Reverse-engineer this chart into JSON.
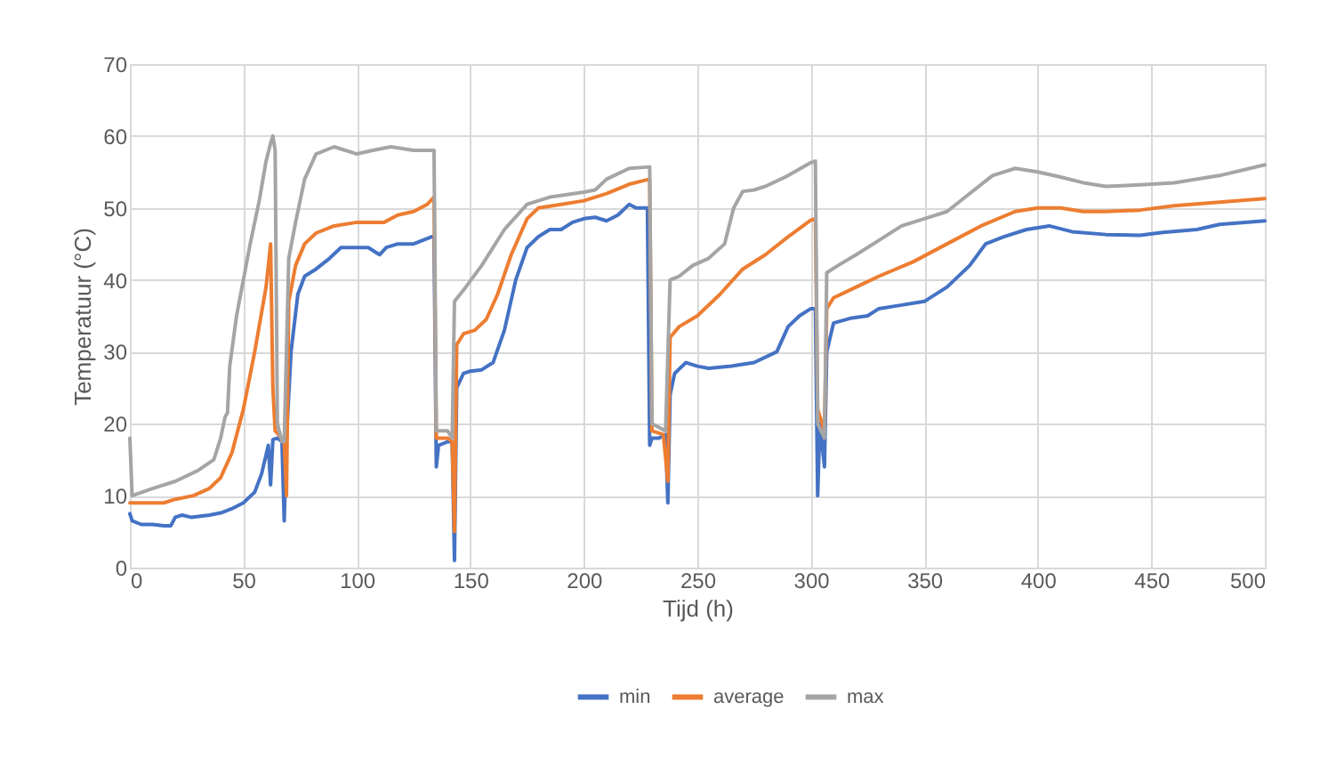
{
  "chart_data": {
    "type": "line",
    "xlabel": "Tijd (h)",
    "ylabel": "Temperatuur (°C)",
    "xlim": [
      0,
      500
    ],
    "xticks": [
      0,
      50,
      100,
      150,
      200,
      250,
      300,
      350,
      400,
      450,
      500
    ],
    "ylim": [
      0,
      70
    ],
    "yticks": [
      0,
      10,
      20,
      30,
      40,
      50,
      60,
      70
    ],
    "grid": true,
    "legend": "bottom",
    "line_style": "solid",
    "marker": "none",
    "series": [
      {
        "name": "min",
        "color": "#4472c4",
        "x": [
          0,
          1,
          5,
          10,
          15,
          18,
          20,
          23,
          27,
          35,
          40,
          45,
          50,
          55,
          58,
          61,
          62,
          63,
          65,
          67,
          68,
          69,
          71,
          74,
          77,
          82,
          88,
          93,
          100,
          105,
          110,
          113,
          118,
          125,
          133,
          134,
          135,
          136,
          140,
          142,
          143,
          144,
          147,
          150,
          155,
          160,
          165,
          170,
          175,
          180,
          185,
          190,
          195,
          200,
          205,
          210,
          215,
          220,
          223,
          228,
          229,
          230,
          233,
          236,
          237,
          238,
          240,
          245,
          250,
          255,
          265,
          275,
          285,
          290,
          295,
          300,
          302,
          303,
          304,
          306,
          307,
          310,
          318,
          325,
          330,
          340,
          350,
          360,
          370,
          377,
          385,
          395,
          405,
          415,
          430,
          445,
          455,
          470,
          480,
          500
        ],
        "values": [
          7.5,
          6.5,
          6,
          6,
          5.8,
          5.8,
          7,
          7.3,
          7,
          7.3,
          7.6,
          8.2,
          9,
          10.5,
          13,
          17,
          11.5,
          17.8,
          18,
          17.5,
          6.5,
          18,
          30,
          38,
          40.5,
          41.5,
          43,
          44.5,
          44.5,
          44.5,
          43.5,
          44.5,
          45,
          45,
          46,
          46,
          14,
          17,
          17.5,
          17.5,
          1,
          25,
          27,
          27.3,
          27.5,
          28.5,
          33,
          40,
          44.5,
          46,
          47,
          47,
          48,
          48.5,
          48.7,
          48.2,
          49,
          50.5,
          50,
          50,
          17,
          18,
          18,
          18.5,
          9,
          24,
          27,
          28.5,
          28,
          27.7,
          28,
          28.5,
          30,
          33.5,
          35,
          36,
          36,
          10,
          20,
          14,
          30,
          34,
          34.7,
          35,
          36,
          36.5,
          37,
          39,
          42,
          45,
          46,
          47,
          47.5,
          46.7,
          46.3,
          46.2,
          46.6,
          47,
          47.7,
          48.2
        ]
      },
      {
        "name": "average",
        "color": "#ed7d31",
        "x": [
          0,
          5,
          15,
          20,
          28,
          35,
          40,
          45,
          50,
          55,
          60,
          62,
          63,
          64,
          67,
          68,
          69,
          70,
          73,
          77,
          82,
          90,
          100,
          112,
          118,
          125,
          131,
          134,
          135,
          140,
          142,
          143,
          144,
          147,
          152,
          157,
          162,
          168,
          175,
          180,
          190,
          200,
          210,
          220,
          229,
          230,
          235,
          237,
          238,
          242,
          250,
          260,
          270,
          280,
          290,
          300,
          302,
          303,
          306,
          307,
          310,
          320,
          330,
          345,
          360,
          375,
          390,
          400,
          410,
          420,
          430,
          445,
          460,
          480,
          500
        ],
        "values": [
          9,
          9,
          9,
          9.5,
          10,
          11,
          12.5,
          16,
          22,
          30,
          39,
          45,
          25,
          19,
          18,
          17.5,
          10,
          37,
          42,
          45,
          46.5,
          47.5,
          48,
          48,
          49,
          49.5,
          50.5,
          51.5,
          18,
          18,
          17.5,
          5,
          31,
          32.5,
          33,
          34.5,
          38,
          43.5,
          48.5,
          50,
          50.5,
          51,
          52,
          53.3,
          54,
          19,
          18.5,
          12,
          32,
          33.5,
          35,
          38,
          41.5,
          43.5,
          46,
          48.3,
          48.5,
          22,
          19,
          36,
          37.5,
          39,
          40.5,
          42.5,
          45,
          47.5,
          49.5,
          50,
          50,
          49.5,
          49.5,
          49.7,
          50.3,
          50.8,
          51.3
        ]
      },
      {
        "name": "max",
        "color": "#a5a5a5",
        "x": [
          0,
          1,
          10,
          20,
          30,
          37,
          40,
          42,
          43,
          44,
          47,
          50,
          53,
          57,
          60,
          62,
          63,
          64,
          65,
          67,
          68,
          70,
          73,
          77,
          82,
          90,
          100,
          107,
          115,
          125,
          134,
          135,
          140,
          142,
          143,
          148,
          155,
          165,
          175,
          185,
          200,
          205,
          210,
          220,
          229,
          230,
          236,
          238,
          242,
          248,
          255,
          262,
          266,
          270,
          275,
          280,
          290,
          300,
          302,
          303,
          306,
          307,
          312,
          320,
          330,
          340,
          350,
          360,
          370,
          380,
          390,
          400,
          410,
          420,
          430,
          445,
          460,
          480,
          500
        ],
        "values": [
          18,
          10,
          11,
          12,
          13.5,
          15,
          18,
          21,
          21.5,
          28,
          35,
          40,
          45,
          51,
          56.5,
          59,
          60,
          58,
          20,
          17.5,
          17.5,
          43,
          48,
          54,
          57.5,
          58.5,
          57.5,
          58,
          58.5,
          58,
          58,
          19,
          19,
          18,
          37,
          39,
          42,
          47,
          50.5,
          51.5,
          52.2,
          52.5,
          54,
          55.5,
          55.7,
          20,
          19,
          40,
          40.5,
          42,
          43,
          45,
          50,
          52.3,
          52.5,
          53,
          54.5,
          56.3,
          56.5,
          20,
          18,
          41,
          42,
          43.5,
          45.5,
          47.5,
          48.5,
          49.5,
          52,
          54.5,
          55.5,
          55,
          54.3,
          53.5,
          53,
          53.2,
          53.5,
          54.5,
          56
        ]
      }
    ]
  }
}
